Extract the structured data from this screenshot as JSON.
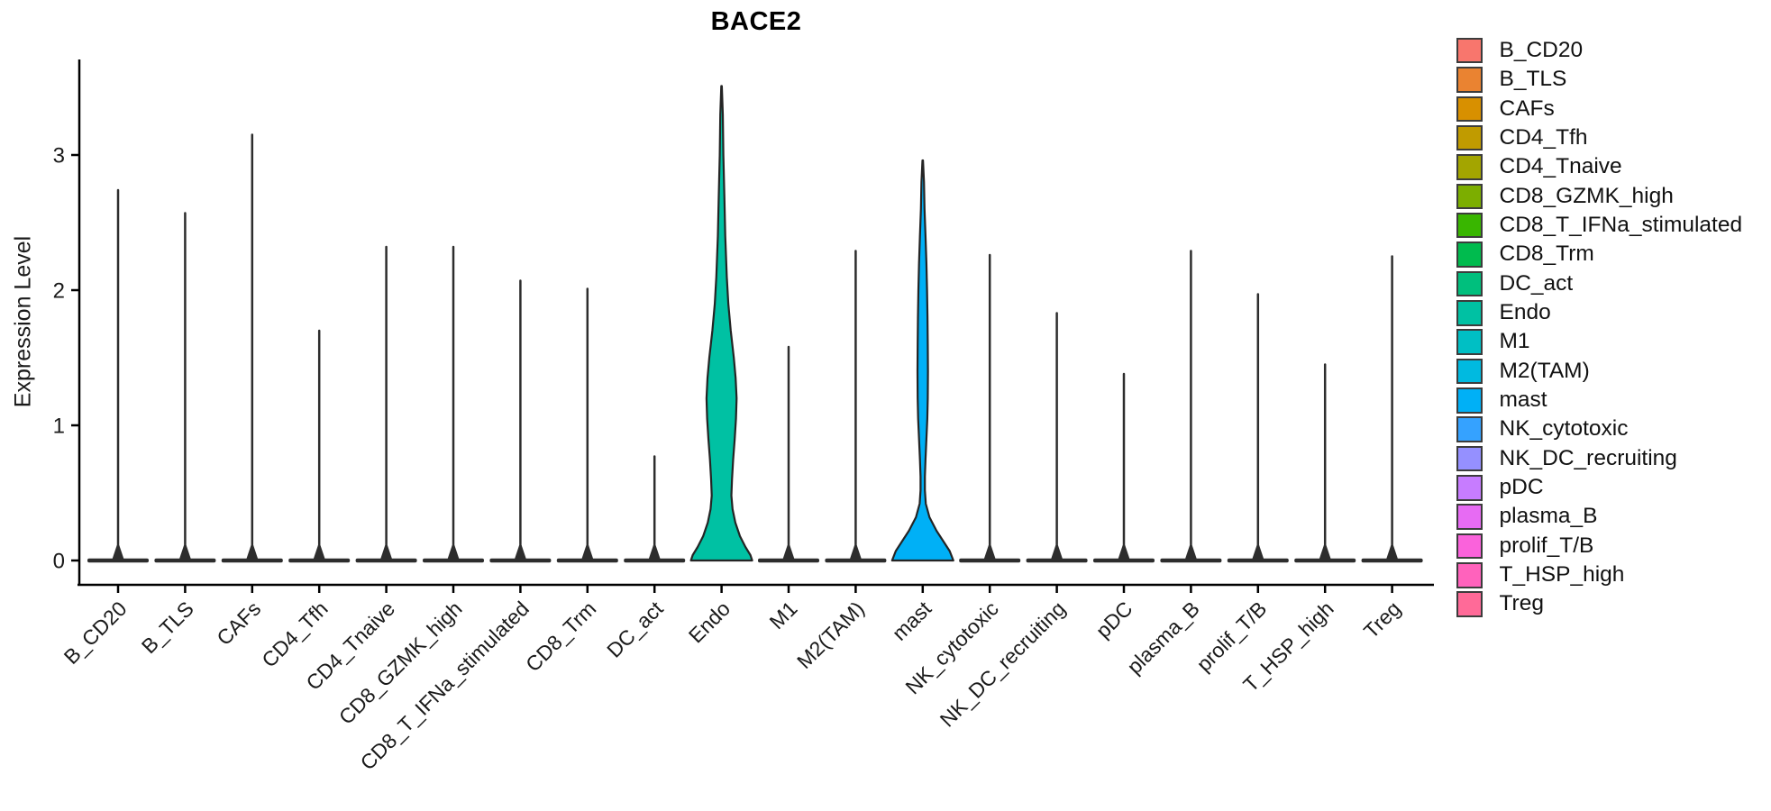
{
  "chart_data": {
    "type": "violin",
    "title": "BACE2",
    "ylabel": "Expression Level",
    "xlabel": "",
    "grid": false,
    "legend_position": "right",
    "ylim": [
      -0.18,
      3.71
    ],
    "yticks": [
      0,
      1,
      2,
      3
    ],
    "categories": [
      {
        "name": "B_CD20",
        "color": "#F8766D",
        "max_expression": 2.74,
        "shape": "spike"
      },
      {
        "name": "B_TLS",
        "color": "#EA8331",
        "max_expression": 2.57,
        "shape": "spike"
      },
      {
        "name": "CAFs",
        "color": "#D89000",
        "max_expression": 3.15,
        "shape": "spike"
      },
      {
        "name": "CD4_Tfh",
        "color": "#C09B00",
        "max_expression": 1.7,
        "shape": "spike"
      },
      {
        "name": "CD4_Tnaive",
        "color": "#A3A500",
        "max_expression": 2.32,
        "shape": "spike"
      },
      {
        "name": "CD8_GZMK_high",
        "color": "#7CAE00",
        "max_expression": 2.32,
        "shape": "spike"
      },
      {
        "name": "CD8_T_IFNa_stimulated",
        "color": "#39B600",
        "max_expression": 2.07,
        "shape": "spike"
      },
      {
        "name": "CD8_Trm",
        "color": "#00BB4E",
        "max_expression": 2.01,
        "shape": "spike"
      },
      {
        "name": "DC_act",
        "color": "#00BF7D",
        "max_expression": 0.77,
        "shape": "spike"
      },
      {
        "name": "Endo",
        "color": "#00C1A3",
        "max_expression": 3.51,
        "shape": "violin"
      },
      {
        "name": "M1",
        "color": "#00BFC4",
        "max_expression": 1.58,
        "shape": "spike"
      },
      {
        "name": "M2(TAM)",
        "color": "#00BAE0",
        "max_expression": 2.29,
        "shape": "spike"
      },
      {
        "name": "mast",
        "color": "#00B0F6",
        "max_expression": 2.96,
        "shape": "violin"
      },
      {
        "name": "NK_cytotoxic",
        "color": "#35A2FF",
        "max_expression": 2.26,
        "shape": "spike"
      },
      {
        "name": "NK_DC_recruiting",
        "color": "#9590FF",
        "max_expression": 1.83,
        "shape": "spike"
      },
      {
        "name": "pDC",
        "color": "#C77CFF",
        "max_expression": 1.38,
        "shape": "spike"
      },
      {
        "name": "plasma_B",
        "color": "#E76BF3",
        "max_expression": 2.29,
        "shape": "spike"
      },
      {
        "name": "prolif_T/B",
        "color": "#FA62DB",
        "max_expression": 1.97,
        "shape": "spike"
      },
      {
        "name": "T_HSP_high",
        "color": "#FF62BC",
        "max_expression": 1.45,
        "shape": "spike"
      },
      {
        "name": "Treg",
        "color": "#FF6A98",
        "max_expression": 2.25,
        "shape": "spike"
      }
    ],
    "violin_profiles": {
      "Endo": [
        [
          3.51,
          0.01
        ],
        [
          3.3,
          0.04
        ],
        [
          3.0,
          0.06
        ],
        [
          2.7,
          0.09
        ],
        [
          2.4,
          0.12
        ],
        [
          2.1,
          0.17
        ],
        [
          1.9,
          0.22
        ],
        [
          1.7,
          0.3
        ],
        [
          1.5,
          0.4
        ],
        [
          1.35,
          0.46
        ],
        [
          1.2,
          0.49
        ],
        [
          1.05,
          0.47
        ],
        [
          0.9,
          0.43
        ],
        [
          0.75,
          0.38
        ],
        [
          0.6,
          0.34
        ],
        [
          0.48,
          0.32
        ],
        [
          0.38,
          0.36
        ],
        [
          0.28,
          0.45
        ],
        [
          0.18,
          0.6
        ],
        [
          0.1,
          0.78
        ],
        [
          0.04,
          0.94
        ],
        [
          0.0,
          1.0
        ]
      ],
      "mast": [
        [
          2.96,
          0.01
        ],
        [
          2.8,
          0.04
        ],
        [
          2.6,
          0.06
        ],
        [
          2.4,
          0.09
        ],
        [
          2.2,
          0.12
        ],
        [
          2.0,
          0.14
        ],
        [
          1.8,
          0.155
        ],
        [
          1.6,
          0.165
        ],
        [
          1.4,
          0.17
        ],
        [
          1.2,
          0.165
        ],
        [
          1.05,
          0.15
        ],
        [
          0.9,
          0.12
        ],
        [
          0.75,
          0.09
        ],
        [
          0.62,
          0.07
        ],
        [
          0.52,
          0.07
        ],
        [
          0.42,
          0.1
        ],
        [
          0.32,
          0.22
        ],
        [
          0.22,
          0.45
        ],
        [
          0.14,
          0.68
        ],
        [
          0.07,
          0.88
        ],
        [
          0.0,
          1.0
        ]
      ]
    },
    "style_colors": {
      "axis": "#000000",
      "spike": "#2d2d2d",
      "violin_outline": "#242424",
      "tick_text": "#1a1a1a"
    }
  }
}
